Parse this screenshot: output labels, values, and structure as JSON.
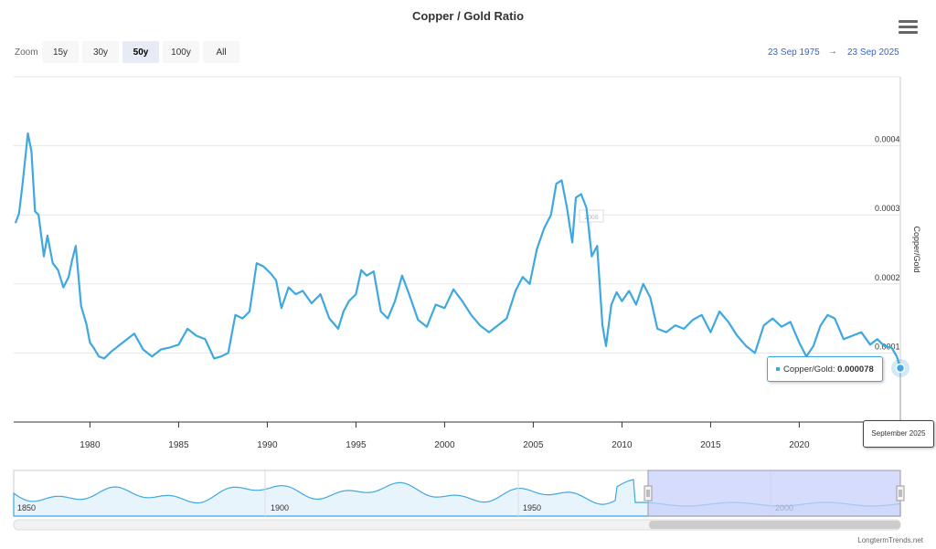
{
  "title": "Copper / Gold Ratio",
  "zoom": {
    "label": "Zoom",
    "buttons": [
      "15y",
      "30y",
      "50y",
      "100y",
      "All"
    ],
    "active": "50y"
  },
  "range": {
    "from": "23 Sep 1975",
    "arrow": "→",
    "to": "23 Sep 2025"
  },
  "tooltip": {
    "series": "Copper/Gold:",
    "value": "0.000078"
  },
  "crosshair_label": "September 2025",
  "flag_label": "2008",
  "footer": "LongtermTrends.net",
  "colors": {
    "line": "#3fa8e0",
    "navigator_mask": "#c8d0fa",
    "accent": "#3366cc"
  },
  "navigator": {
    "labels": [
      "1850",
      "1900",
      "1950",
      "2000"
    ]
  },
  "chart_data": {
    "type": "line",
    "title": "Copper / Gold Ratio",
    "xlabel": "",
    "ylabel": "Copper/Gold",
    "x_tick_labels": [
      "1980",
      "1985",
      "1990",
      "1995",
      "2000",
      "2005",
      "2010",
      "2015",
      "2020"
    ],
    "y_tick_labels": [
      "0.0001",
      "0.0002",
      "0.0003",
      "0.0004"
    ],
    "y_ticks": [
      0.0001,
      0.0002,
      0.0003,
      0.0004
    ],
    "xlim": [
      1975.7,
      2025.7
    ],
    "ylim": [
      0.0,
      0.0005
    ],
    "grid": true,
    "series": [
      {
        "name": "Copper/Gold",
        "x": [
          1975.8,
          1976.0,
          1976.2,
          1976.5,
          1976.7,
          1976.9,
          1977.1,
          1977.4,
          1977.6,
          1977.9,
          1978.2,
          1978.5,
          1978.8,
          1979.0,
          1979.2,
          1979.5,
          1979.8,
          1980.0,
          1980.2,
          1980.5,
          1980.8,
          1981.2,
          1981.6,
          1982.0,
          1982.5,
          1983.0,
          1983.5,
          1984.0,
          1984.5,
          1985.0,
          1985.5,
          1986.0,
          1986.5,
          1987.0,
          1987.4,
          1987.8,
          1988.2,
          1988.6,
          1989.0,
          1989.4,
          1989.8,
          1990.2,
          1990.5,
          1990.8,
          1991.2,
          1991.6,
          1992.0,
          1992.5,
          1993.0,
          1993.5,
          1994.0,
          1994.3,
          1994.6,
          1995.0,
          1995.3,
          1995.6,
          1996.0,
          1996.4,
          1996.8,
          1997.2,
          1997.6,
          1998.0,
          1998.5,
          1999.0,
          1999.5,
          2000.0,
          2000.5,
          2001.0,
          2001.5,
          2002.0,
          2002.5,
          2003.0,
          2003.5,
          2004.0,
          2004.4,
          2004.8,
          2005.2,
          2005.6,
          2006.0,
          2006.3,
          2006.6,
          2006.9,
          2007.2,
          2007.4,
          2007.7,
          2008.0,
          2008.3,
          2008.6,
          2008.9,
          2009.1,
          2009.4,
          2009.7,
          2010.0,
          2010.4,
          2010.8,
          2011.2,
          2011.6,
          2012.0,
          2012.5,
          2013.0,
          2013.5,
          2014.0,
          2014.5,
          2015.0,
          2015.5,
          2016.0,
          2016.5,
          2017.0,
          2017.5,
          2018.0,
          2018.5,
          2019.0,
          2019.5,
          2020.0,
          2020.4,
          2020.8,
          2021.2,
          2021.6,
          2022.0,
          2022.5,
          2023.0,
          2023.5,
          2024.0,
          2024.4,
          2024.8,
          2025.2,
          2025.5,
          2025.7
        ],
        "y": [
          0.000288,
          0.000302,
          0.000345,
          0.000418,
          0.000392,
          0.000305,
          0.0003,
          0.00024,
          0.00027,
          0.00023,
          0.00022,
          0.000195,
          0.00021,
          0.000235,
          0.000255,
          0.000168,
          0.000142,
          0.000115,
          0.000108,
          9.5e-05,
          9.2e-05,
          0.000102,
          0.00011,
          0.000118,
          0.000128,
          0.000105,
          9.5e-05,
          0.000105,
          0.000108,
          0.000112,
          0.000135,
          0.000125,
          0.00012,
          9.2e-05,
          9.5e-05,
          0.0001,
          0.000155,
          0.00015,
          0.00016,
          0.00023,
          0.000225,
          0.000215,
          0.000205,
          0.000165,
          0.000195,
          0.000185,
          0.00019,
          0.000172,
          0.000185,
          0.00015,
          0.000135,
          0.00016,
          0.000175,
          0.000185,
          0.00022,
          0.000212,
          0.000218,
          0.00016,
          0.00015,
          0.000175,
          0.000212,
          0.000185,
          0.000148,
          0.000138,
          0.00017,
          0.000165,
          0.000192,
          0.000175,
          0.000155,
          0.00014,
          0.00013,
          0.00014,
          0.00015,
          0.00019,
          0.00021,
          0.0002,
          0.00025,
          0.00028,
          0.0003,
          0.000345,
          0.00035,
          0.00031,
          0.00026,
          0.000325,
          0.00033,
          0.00031,
          0.00024,
          0.000255,
          0.00014,
          0.00011,
          0.00017,
          0.000188,
          0.000175,
          0.00019,
          0.00017,
          0.0002,
          0.00018,
          0.000135,
          0.00013,
          0.00014,
          0.000135,
          0.000148,
          0.000155,
          0.00013,
          0.00016,
          0.000145,
          0.000125,
          0.00011,
          0.0001,
          0.00014,
          0.00015,
          0.000138,
          0.000145,
          0.000115,
          9.5e-05,
          0.00011,
          0.00014,
          0.000155,
          0.00015,
          0.00012,
          0.000125,
          0.00013,
          0.000112,
          0.00012,
          0.00011,
          0.000108,
          9.5e-05,
          7.8e-05
        ]
      }
    ]
  }
}
